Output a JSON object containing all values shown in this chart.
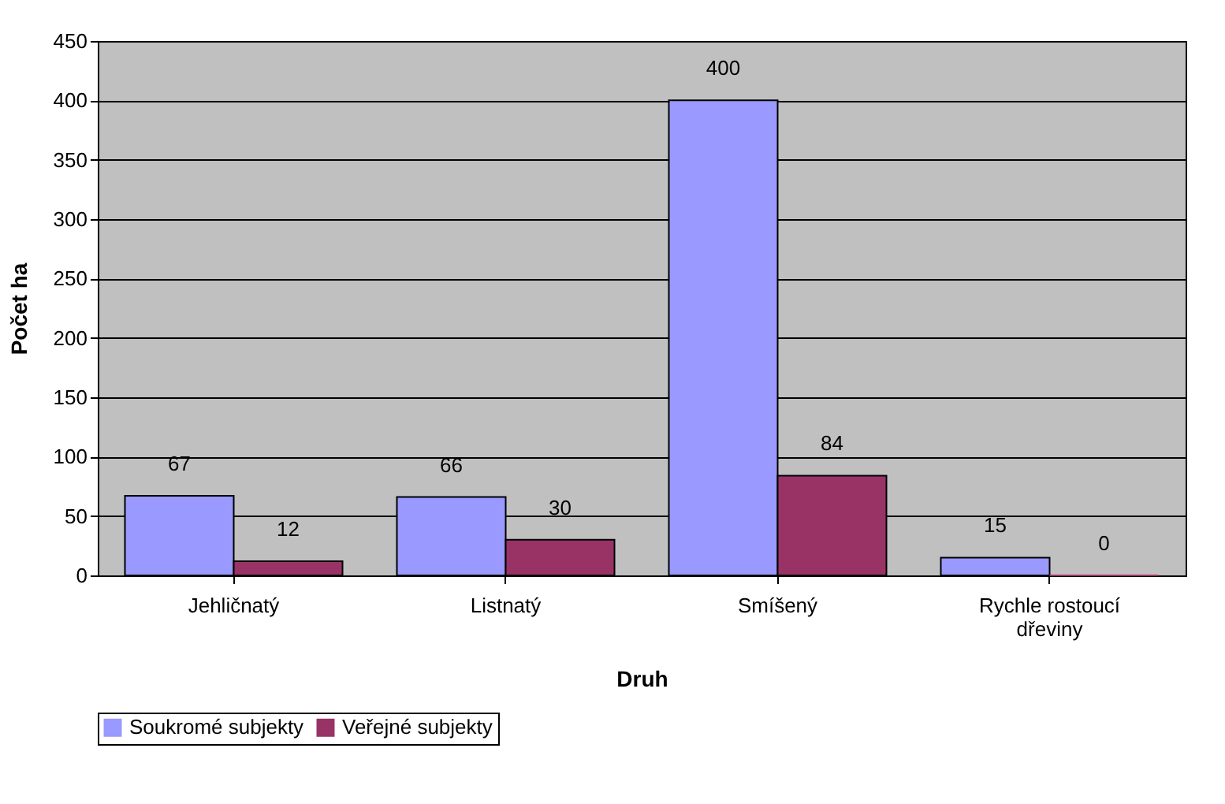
{
  "chart_data": {
    "type": "bar",
    "xlabel": "Druh",
    "ylabel": "Počet ha",
    "categories": [
      "Jehličnatý",
      "Listnatý",
      "Smíšený",
      "Rychle rostoucí dřeviny"
    ],
    "series": [
      {
        "name": "Soukromé subjekty",
        "color": "#9999ff",
        "values": [
          67,
          66,
          400,
          15
        ]
      },
      {
        "name": "Veřejné subjekty",
        "color": "#993366",
        "values": [
          12,
          30,
          84,
          0
        ]
      }
    ],
    "ylim": [
      0,
      450
    ],
    "yticks": [
      0,
      50,
      100,
      150,
      200,
      250,
      300,
      350,
      400,
      450
    ],
    "grid": "y",
    "legend": "bottom",
    "data_labels": true
  }
}
